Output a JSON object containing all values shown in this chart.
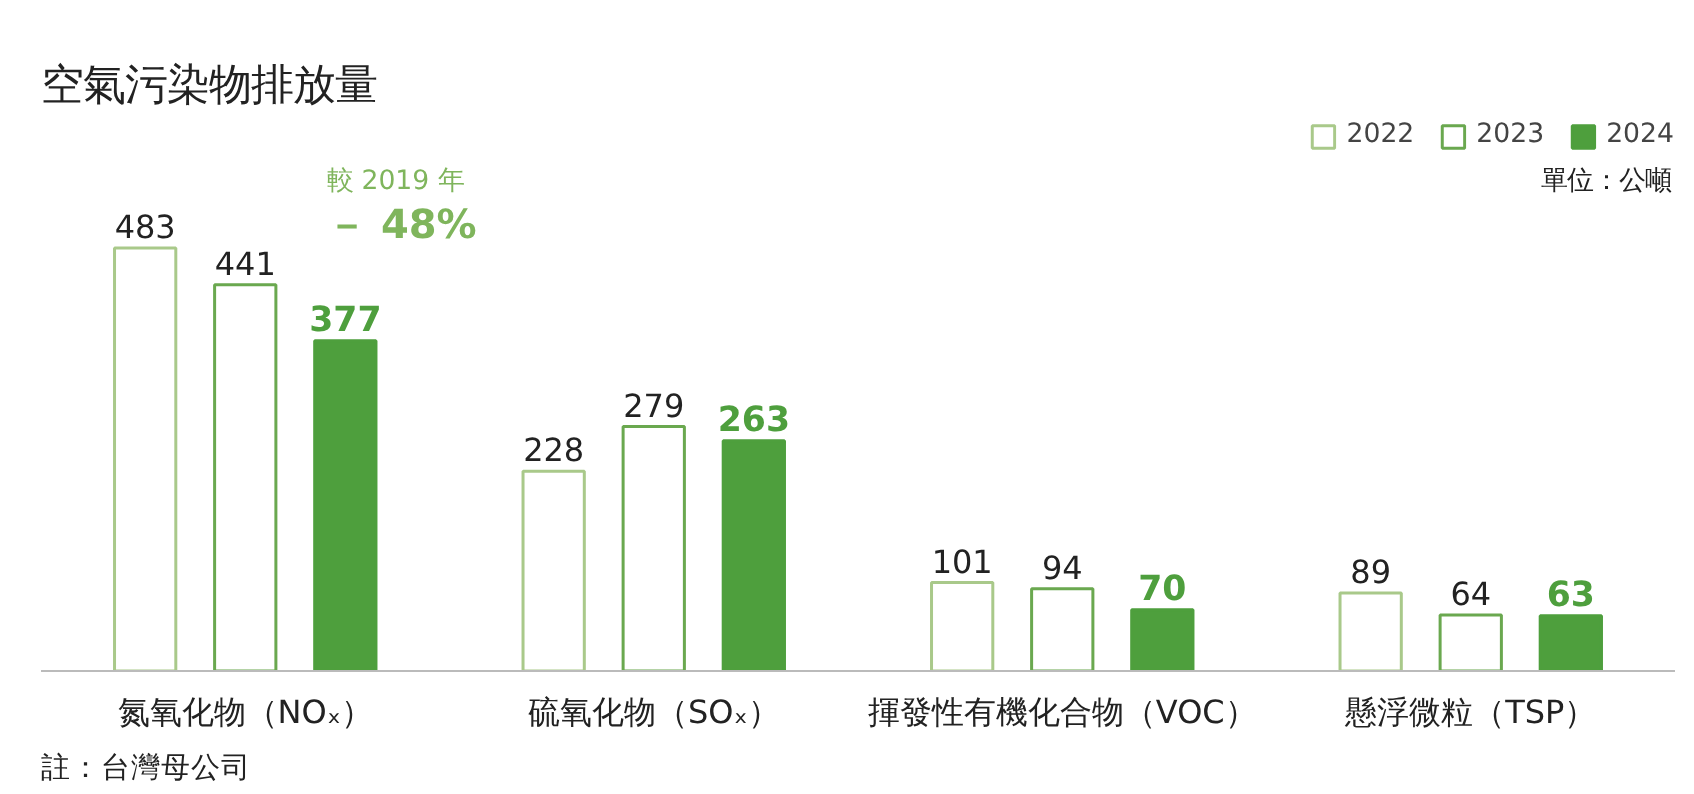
{
  "chart_data": {
    "type": "bar",
    "title": "空氣污染物排放量",
    "categories": [
      "氮氧化物（NOₓ）",
      "硫氧化物（SOₓ）",
      "揮發性有機化合物（VOC）",
      "懸浮微粒（TSP）"
    ],
    "series": [
      {
        "name": "2022",
        "color": "#a9c98a",
        "values": [
          483,
          228,
          101,
          89
        ]
      },
      {
        "name": "2023",
        "color": "#6aa84f",
        "values": [
          441,
          279,
          94,
          64
        ]
      },
      {
        "name": "2024",
        "color": "#4e9f3d",
        "values": [
          377,
          263,
          70,
          63
        ]
      }
    ],
    "data_labels": true,
    "legend": "top right",
    "grid": false,
    "annotations": [
      "單位：公噸",
      "較 2019 年",
      "－ 48%",
      "註：台灣母公司"
    ]
  }
}
